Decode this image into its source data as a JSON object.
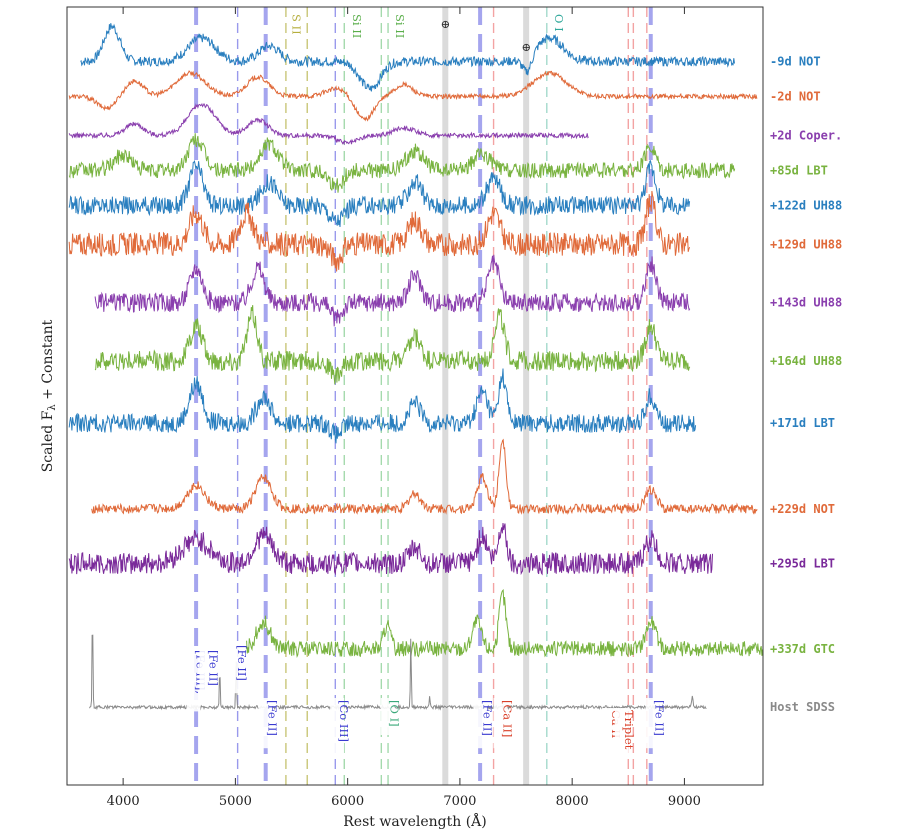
{
  "chart_data": {
    "type": "line",
    "xlabel": "Rest wavelength (Å)",
    "ylabel": "Scaled F",
    "ylabel_sub": "λ",
    "ylabel_tail": " + Constant",
    "xlim": [
      3500,
      9700
    ],
    "xticks": [
      4000,
      5000,
      6000,
      7000,
      8000,
      9000
    ],
    "xtick_labels": [
      "4000",
      "5000",
      "6000",
      "7000",
      "8000",
      "9000"
    ],
    "series": [
      {
        "name": "-9d NOT",
        "color": "#2a7fbf",
        "x_range": [
          3620,
          9450
        ],
        "noise": 0.006,
        "level": 0.93,
        "features": [
          [
            3900,
            0.045,
            70
          ],
          [
            4700,
            0.03,
            120
          ],
          [
            5300,
            0.02,
            90
          ],
          [
            6200,
            -0.035,
            90
          ],
          [
            7800,
            0.03,
            120
          ],
          [
            7600,
            -0.02,
            40
          ]
        ]
      },
      {
        "name": "-2d NOT",
        "color": "#e06a3a",
        "x_range": [
          3520,
          9650
        ],
        "noise": 0.003,
        "level": 0.885,
        "features": [
          [
            3850,
            -0.015,
            80
          ],
          [
            4100,
            0.02,
            80
          ],
          [
            4600,
            0.03,
            130
          ],
          [
            5200,
            0.025,
            100
          ],
          [
            5900,
            0.01,
            100
          ],
          [
            6150,
            -0.03,
            80
          ],
          [
            6500,
            0.015,
            80
          ],
          [
            7800,
            0.03,
            150
          ]
        ]
      },
      {
        "name": "+2d Coper.",
        "color": "#8a3fae",
        "x_range": [
          3520,
          8150
        ],
        "noise": 0.003,
        "level": 0.835,
        "features": [
          [
            4100,
            0.015,
            80
          ],
          [
            4700,
            0.04,
            120
          ],
          [
            5200,
            0.02,
            90
          ],
          [
            6000,
            -0.01,
            90
          ],
          [
            6500,
            0.01,
            90
          ]
        ]
      },
      {
        "name": "+85d LBT",
        "color": "#79b340",
        "x_range": [
          3520,
          9450
        ],
        "noise": 0.01,
        "level": 0.79,
        "features": [
          [
            4000,
            0.02,
            80
          ],
          [
            4650,
            0.04,
            70
          ],
          [
            5300,
            0.035,
            80
          ],
          [
            5900,
            -0.02,
            60
          ],
          [
            6600,
            0.025,
            80
          ],
          [
            7200,
            0.02,
            80
          ],
          [
            8700,
            0.03,
            50
          ]
        ]
      },
      {
        "name": "+122d UH88",
        "color": "#2a7fbf",
        "x_range": [
          3520,
          9050
        ],
        "noise": 0.012,
        "level": 0.745,
        "features": [
          [
            4650,
            0.05,
            60
          ],
          [
            5300,
            0.03,
            70
          ],
          [
            5900,
            -0.02,
            60
          ],
          [
            6600,
            0.03,
            60
          ],
          [
            7300,
            0.035,
            60
          ],
          [
            8700,
            0.05,
            45
          ]
        ]
      },
      {
        "name": "+129d UH88",
        "color": "#e06a3a",
        "x_range": [
          3520,
          9050
        ],
        "noise": 0.015,
        "level": 0.695,
        "features": [
          [
            4650,
            0.04,
            60
          ],
          [
            5100,
            0.04,
            60
          ],
          [
            5900,
            -0.02,
            50
          ],
          [
            6600,
            0.03,
            60
          ],
          [
            7300,
            0.04,
            55
          ],
          [
            8700,
            0.055,
            45
          ]
        ]
      },
      {
        "name": "+143d UH88",
        "color": "#8a3fae",
        "x_range": [
          3750,
          9050
        ],
        "noise": 0.012,
        "level": 0.62,
        "features": [
          [
            4650,
            0.045,
            55
          ],
          [
            5200,
            0.045,
            55
          ],
          [
            5900,
            -0.02,
            50
          ],
          [
            6600,
            0.035,
            55
          ],
          [
            7300,
            0.05,
            50
          ],
          [
            8700,
            0.05,
            45
          ]
        ]
      },
      {
        "name": "+164d UH88",
        "color": "#79b340",
        "x_range": [
          3750,
          9050
        ],
        "noise": 0.013,
        "level": 0.545,
        "features": [
          [
            4650,
            0.045,
            55
          ],
          [
            5150,
            0.06,
            45
          ],
          [
            5900,
            -0.02,
            50
          ],
          [
            6600,
            0.03,
            50
          ],
          [
            7350,
            0.06,
            45
          ],
          [
            8700,
            0.045,
            45
          ]
        ]
      },
      {
        "name": "+171d LBT",
        "color": "#2a7fbf",
        "x_range": [
          3520,
          9100
        ],
        "noise": 0.012,
        "level": 0.465,
        "features": [
          [
            4650,
            0.05,
            60
          ],
          [
            5250,
            0.035,
            60
          ],
          [
            5900,
            -0.015,
            50
          ],
          [
            6600,
            0.025,
            50
          ],
          [
            7200,
            0.04,
            50
          ],
          [
            7380,
            0.06,
            35
          ],
          [
            8700,
            0.035,
            45
          ]
        ]
      },
      {
        "name": "+229d NOT",
        "color": "#e06a3a",
        "x_range": [
          3720,
          9650
        ],
        "noise": 0.006,
        "level": 0.355,
        "features": [
          [
            4650,
            0.03,
            80
          ],
          [
            5250,
            0.04,
            70
          ],
          [
            6600,
            0.02,
            50
          ],
          [
            7200,
            0.04,
            45
          ],
          [
            7380,
            0.09,
            30
          ],
          [
            8700,
            0.025,
            50
          ]
        ]
      },
      {
        "name": "+295d LBT",
        "color": "#7a2a9a",
        "x_range": [
          3520,
          9250
        ],
        "noise": 0.014,
        "level": 0.285,
        "features": [
          [
            4650,
            0.03,
            120
          ],
          [
            5250,
            0.035,
            80
          ],
          [
            6600,
            0.02,
            50
          ],
          [
            7200,
            0.035,
            45
          ],
          [
            7380,
            0.05,
            35
          ],
          [
            8700,
            0.03,
            50
          ]
        ]
      },
      {
        "name": "+337d GTC",
        "color": "#79b340",
        "x_range": [
          5100,
          9700
        ],
        "noise": 0.01,
        "level": 0.175,
        "features": [
          [
            5250,
            0.035,
            60
          ],
          [
            6350,
            0.03,
            30
          ],
          [
            7150,
            0.035,
            40
          ],
          [
            7380,
            0.07,
            30
          ],
          [
            8700,
            0.035,
            45
          ]
        ]
      },
      {
        "name": "Host SDSS",
        "color": "#8a8a8a",
        "x_range": [
          3700,
          9200
        ],
        "noise": 0.002,
        "level": 0.1,
        "features": [
          [
            3727,
            0.12,
            4
          ],
          [
            4861,
            0.05,
            4
          ],
          [
            5007,
            0.06,
            4
          ],
          [
            6563,
            0.09,
            4
          ],
          [
            6730,
            0.015,
            4
          ],
          [
            9070,
            0.015,
            6
          ]
        ]
      }
    ],
    "reference_lines": [
      {
        "wave": 4650,
        "color": "#8f8fea",
        "style": "thick-dash"
      },
      {
        "wave": 5020,
        "color": "#8f8fea",
        "style": "thin-dash"
      },
      {
        "wave": 5270,
        "color": "#8f8fea",
        "style": "thick-dash"
      },
      {
        "wave": 5450,
        "color": "#c4c06a",
        "style": "thin-dash"
      },
      {
        "wave": 5640,
        "color": "#c4c06a",
        "style": "thin-dash"
      },
      {
        "wave": 5890,
        "color": "#8f8fea",
        "style": "thin-dash"
      },
      {
        "wave": 5970,
        "color": "#9bd6a5",
        "style": "thin-dash"
      },
      {
        "wave": 6300,
        "color": "#9bd6a5",
        "style": "thin-dash"
      },
      {
        "wave": 6360,
        "color": "#9bd6a5",
        "style": "thin-dash"
      },
      {
        "wave": 6870,
        "color": "#cfcfcf",
        "style": "band"
      },
      {
        "wave": 7180,
        "color": "#8f8fea",
        "style": "thick-dash"
      },
      {
        "wave": 7300,
        "color": "#f29a9a",
        "style": "thin-dash"
      },
      {
        "wave": 7590,
        "color": "#cfcfcf",
        "style": "band"
      },
      {
        "wave": 7774,
        "color": "#9bd6c7",
        "style": "thin-dash"
      },
      {
        "wave": 8500,
        "color": "#f29a9a",
        "style": "thin-dash"
      },
      {
        "wave": 8545,
        "color": "#f29a9a",
        "style": "thin-dash"
      },
      {
        "wave": 8665,
        "color": "#f29a9a",
        "style": "thin-dash"
      },
      {
        "wave": 8700,
        "color": "#8f8fea",
        "style": "thick-dash"
      }
    ],
    "line_ids": {
      "top": [
        {
          "text": "S II",
          "wave": 5475,
          "color": "#b5ae3c"
        },
        {
          "text": "Si II",
          "wave": 6010,
          "color": "#5aae4a"
        },
        {
          "text": "Si II",
          "wave": 6395,
          "color": "#5aae4a"
        },
        {
          "text": "⊕",
          "wave": 6870,
          "color": "#333333"
        },
        {
          "text": "⊕",
          "wave": 7590,
          "color": "#333333"
        },
        {
          "text": "O I",
          "wave": 7810,
          "color": "#2fa89a"
        }
      ],
      "bottom": [
        {
          "text": "[Fe III], [Fe II]",
          "wave": 4600,
          "color": "#3a3ad0",
          "rows": [
            "[Fe III],",
            "[Fe II]"
          ]
        },
        {
          "text": "[Fe II]",
          "wave": 4970,
          "color": "#3a3ad0"
        },
        {
          "text": "[Fe II]",
          "wave": 5240,
          "color": "#3a3ad0"
        },
        {
          "text": "[Co III]",
          "wave": 5880,
          "color": "#3a3ad0"
        },
        {
          "text": "[O I]",
          "wave": 6330,
          "color": "#3aa87a"
        },
        {
          "text": "[Fe II]",
          "wave": 7155,
          "color": "#3a3ad0"
        },
        {
          "text": "[Ca II]",
          "wave": 7335,
          "color": "#d9402a"
        },
        {
          "text": "Ca II Triplet",
          "wave": 8300,
          "color": "#d9402a",
          "rows": [
            "Ca II",
            "Triplet"
          ]
        },
        {
          "text": "[Fe II]",
          "wave": 8690,
          "color": "#3a3ad0"
        }
      ]
    },
    "grid": false,
    "legend": "right-side labels per spectrum"
  }
}
